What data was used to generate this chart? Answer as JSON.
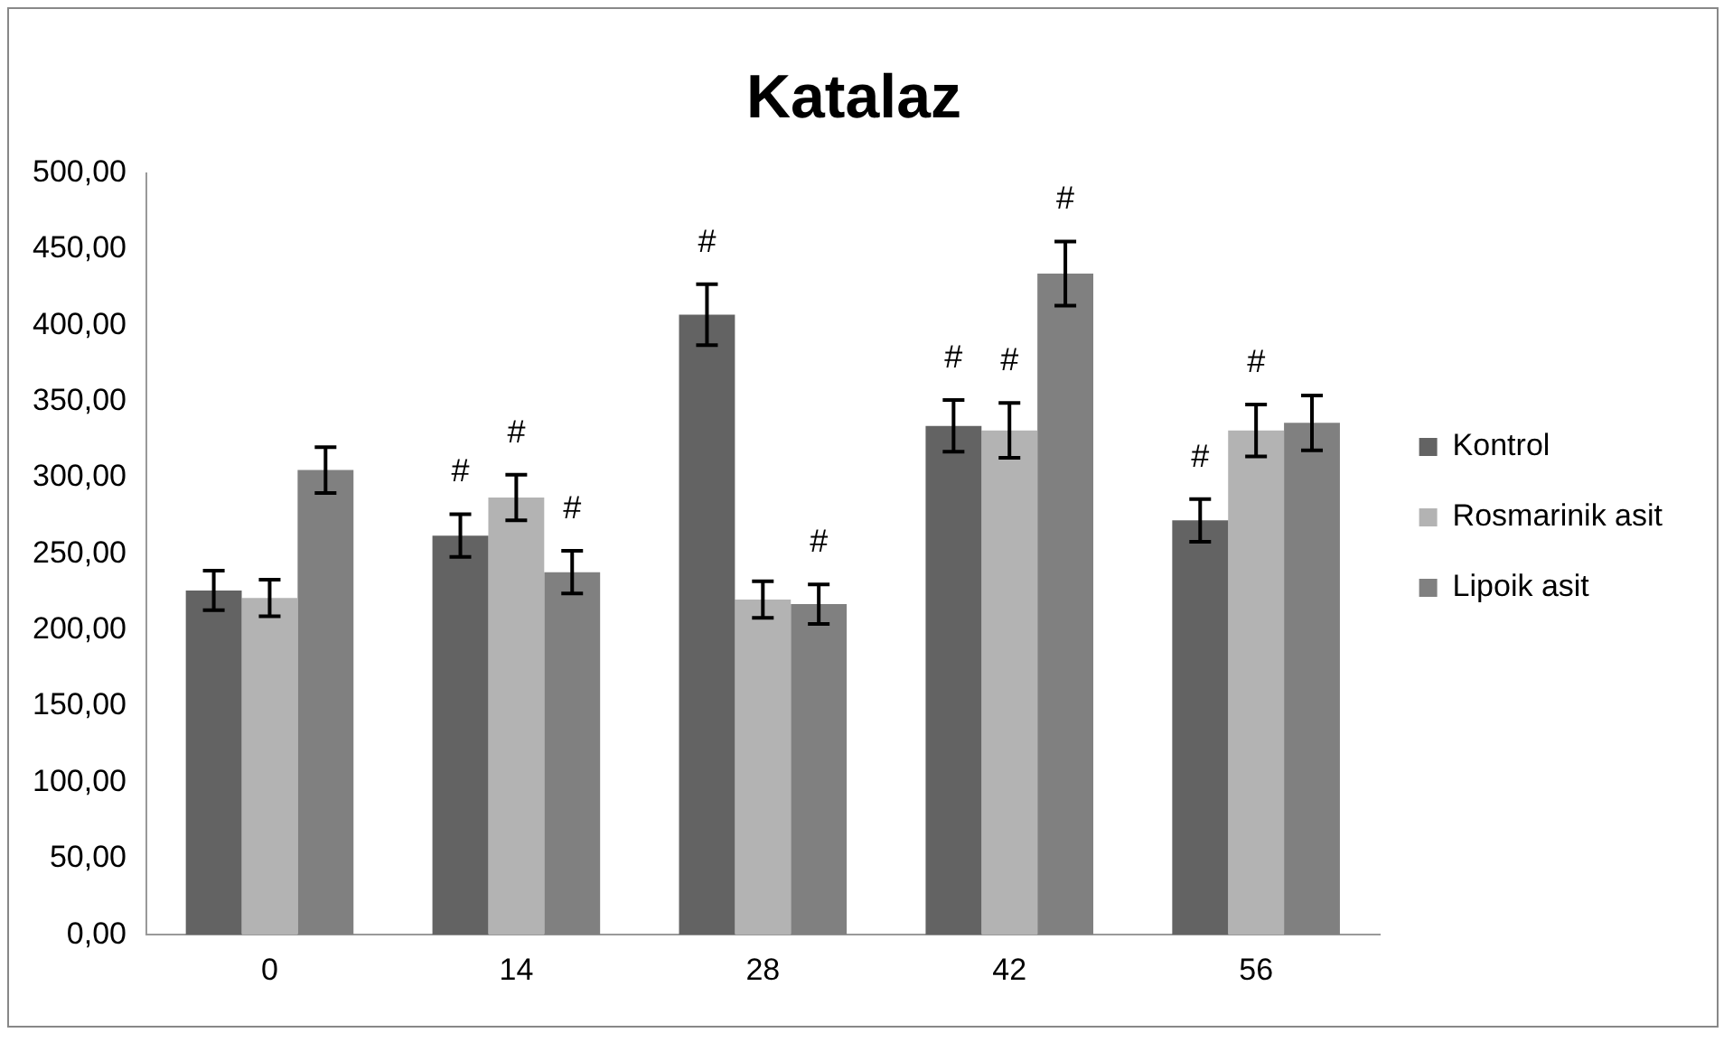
{
  "chart_data": {
    "type": "bar",
    "title": "Katalaz",
    "categories": [
      "0",
      "14",
      "28",
      "42",
      "56"
    ],
    "series": [
      {
        "name": "Kontrol",
        "color": "#636363",
        "values": [
          226,
          262,
          407,
          334,
          272
        ],
        "errors": [
          13,
          14,
          20,
          17,
          14
        ],
        "value_labels": [
          null,
          "#",
          "#",
          "#",
          "#"
        ]
      },
      {
        "name": "Rosmarinik asit",
        "color": "#b3b3b3",
        "values": [
          221,
          287,
          220,
          331,
          331
        ],
        "errors": [
          12,
          15,
          12,
          18,
          17
        ],
        "value_labels": [
          null,
          "#",
          null,
          "#",
          "#"
        ]
      },
      {
        "name": "Lipoik asit",
        "color": "#808080",
        "values": [
          305,
          238,
          217,
          434,
          336
        ],
        "errors": [
          15,
          14,
          13,
          21,
          18
        ],
        "value_labels": [
          null,
          "#",
          "#",
          "#",
          null
        ]
      }
    ],
    "ylim": [
      0,
      500
    ],
    "yticks": [
      {
        "value": 0,
        "label": "0,00"
      },
      {
        "value": 50,
        "label": "50,00"
      },
      {
        "value": 100,
        "label": "100,00"
      },
      {
        "value": 150,
        "label": "150,00"
      },
      {
        "value": 200,
        "label": "200,00"
      },
      {
        "value": 250,
        "label": "250,00"
      },
      {
        "value": 300,
        "label": "300,00"
      },
      {
        "value": 350,
        "label": "350,00"
      },
      {
        "value": 400,
        "label": "400,00"
      },
      {
        "value": 450,
        "label": "450,00"
      },
      {
        "value": 500,
        "label": "500,00"
      }
    ],
    "grid": false,
    "legend": "right"
  }
}
